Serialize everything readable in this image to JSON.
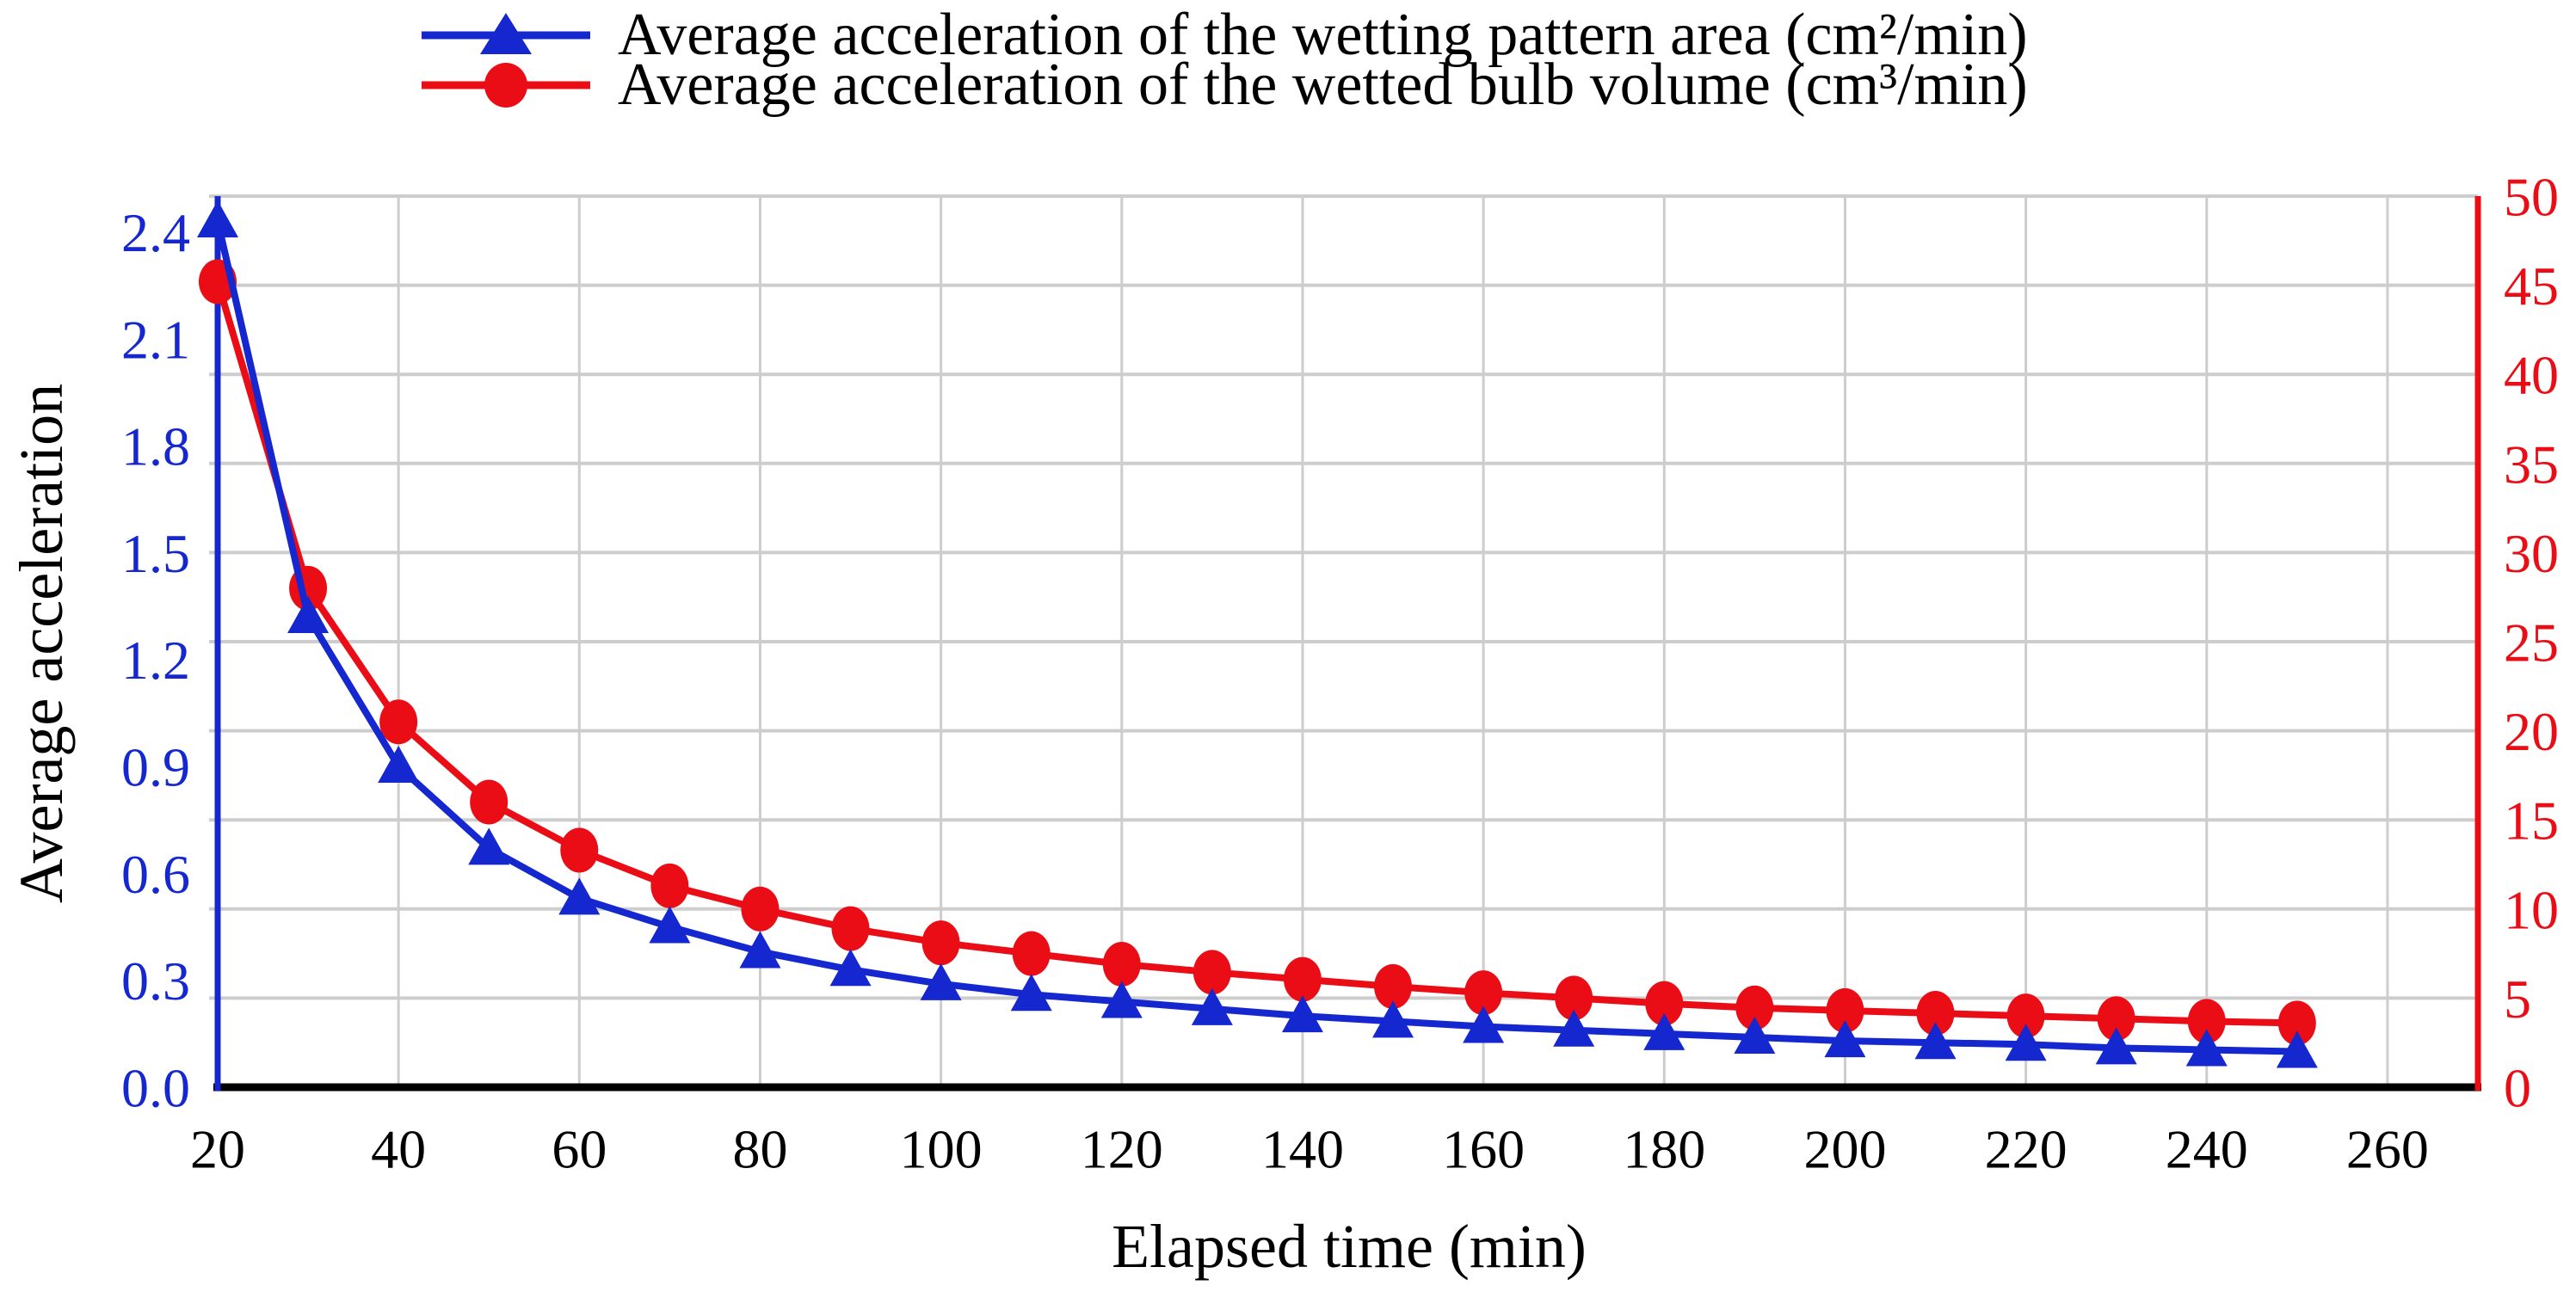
{
  "chart_data": {
    "type": "line",
    "title": "",
    "xlabel": "Elapsed time (min)",
    "ylabel": "Average acceleration",
    "x_axis": {
      "range": [
        20,
        270
      ],
      "ticks": [
        20,
        40,
        60,
        80,
        100,
        120,
        140,
        160,
        180,
        200,
        220,
        240,
        260
      ],
      "label_color": "#000000",
      "axis_color": "#000000"
    },
    "left_axis": {
      "range": [
        0,
        2.5
      ],
      "tick_labels": [
        "0.0",
        "0.3",
        "0.6",
        "0.9",
        "1.2",
        "1.5",
        "1.8",
        "2.1",
        "2.4"
      ],
      "color": "#1527ce"
    },
    "right_axis": {
      "range": [
        0,
        50
      ],
      "ticks": [
        0,
        5,
        10,
        15,
        20,
        25,
        30,
        35,
        40,
        45,
        50
      ],
      "color": "#ea0d16"
    },
    "grid": {
      "color": "#cdcdcd",
      "horizontal_at_right_ticks": true,
      "vertical_at_x_ticks": true
    },
    "x": [
      20,
      30,
      40,
      50,
      60,
      70,
      80,
      90,
      100,
      110,
      120,
      130,
      140,
      150,
      160,
      170,
      180,
      190,
      200,
      210,
      220,
      230,
      240,
      250
    ],
    "series": [
      {
        "name": "Average acceleration of the wetting pattern area (cm²/min)",
        "id": "wetting-pattern-area",
        "axis": "left",
        "color": "#1527ce",
        "marker": "triangle",
        "values": [
          2.43,
          1.32,
          0.9,
          0.67,
          0.53,
          0.45,
          0.38,
          0.33,
          0.29,
          0.26,
          0.24,
          0.22,
          0.2,
          0.185,
          0.17,
          0.16,
          0.15,
          0.14,
          0.13,
          0.125,
          0.12,
          0.11,
          0.105,
          0.1
        ]
      },
      {
        "name": "Average acceleration of the wetted bulb volume (cm³/min)",
        "id": "wetted-bulb-volume",
        "axis": "right",
        "color": "#ea0d16",
        "marker": "circle",
        "values": [
          45.2,
          28.0,
          20.5,
          16.0,
          13.3,
          11.3,
          10.0,
          8.9,
          8.1,
          7.5,
          6.9,
          6.45,
          6.05,
          5.65,
          5.3,
          5.0,
          4.7,
          4.45,
          4.3,
          4.15,
          4.0,
          3.85,
          3.7,
          3.6
        ]
      }
    ],
    "legend_position": "top"
  }
}
